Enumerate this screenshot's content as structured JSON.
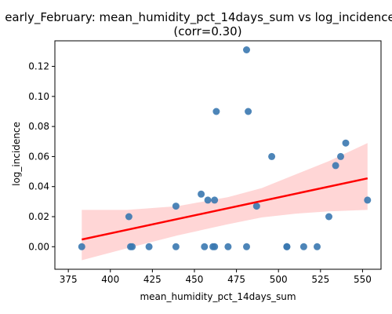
{
  "chart_data": {
    "type": "scatter",
    "title_line1": "early_February: mean_humidity_pct_14days_sum vs log_incidence",
    "title_line2": "(corr=0.30)",
    "xlabel": "mean_humidity_pct_14days_sum",
    "ylabel": "log_incidence",
    "xlim": [
      367,
      561
    ],
    "ylim": [
      -0.015,
      0.137
    ],
    "xticks": [
      375,
      400,
      425,
      450,
      475,
      500,
      525,
      550
    ],
    "xtick_labels": [
      "375",
      "400",
      "425",
      "450",
      "475",
      "500",
      "525",
      "550"
    ],
    "yticks": [
      0.0,
      0.02,
      0.04,
      0.06,
      0.08,
      0.1,
      0.12
    ],
    "ytick_labels": [
      "0.00",
      "0.02",
      "0.04",
      "0.06",
      "0.08",
      "0.10",
      "0.12"
    ],
    "grid": false,
    "points": [
      {
        "x": 383,
        "y": 0.0
      },
      {
        "x": 411,
        "y": 0.02
      },
      {
        "x": 412,
        "y": 0.0
      },
      {
        "x": 413,
        "y": 0.0
      },
      {
        "x": 423,
        "y": 0.0
      },
      {
        "x": 439,
        "y": 0.027
      },
      {
        "x": 439,
        "y": 0.0
      },
      {
        "x": 454,
        "y": 0.035
      },
      {
        "x": 456,
        "y": 0.0
      },
      {
        "x": 458,
        "y": 0.031
      },
      {
        "x": 461,
        "y": 0.0
      },
      {
        "x": 462,
        "y": 0.031
      },
      {
        "x": 462,
        "y": 0.0
      },
      {
        "x": 463,
        "y": 0.09
      },
      {
        "x": 470,
        "y": 0.0
      },
      {
        "x": 481,
        "y": 0.0
      },
      {
        "x": 481,
        "y": 0.131
      },
      {
        "x": 482,
        "y": 0.09
      },
      {
        "x": 487,
        "y": 0.027
      },
      {
        "x": 496,
        "y": 0.06
      },
      {
        "x": 505,
        "y": 0.0
      },
      {
        "x": 505,
        "y": 0.0
      },
      {
        "x": 515,
        "y": 0.0
      },
      {
        "x": 523,
        "y": 0.0
      },
      {
        "x": 530,
        "y": 0.02
      },
      {
        "x": 534,
        "y": 0.054
      },
      {
        "x": 537,
        "y": 0.06
      },
      {
        "x": 540,
        "y": 0.069
      },
      {
        "x": 553,
        "y": 0.031
      }
    ],
    "regression_line": {
      "x": [
        383,
        553
      ],
      "y": [
        0.0048,
        0.0455
      ]
    },
    "confidence_band": {
      "x": [
        383,
        410,
        440,
        470,
        490,
        510,
        530,
        553
      ],
      "upper": [
        0.0245,
        0.0245,
        0.027,
        0.033,
        0.039,
        0.048,
        0.057,
        0.069
      ],
      "lower": [
        -0.009,
        -0.001,
        0.0075,
        0.015,
        0.0195,
        0.022,
        0.0235,
        0.0245
      ]
    },
    "colors": {
      "points": "#3a78b0",
      "regression": "#ff0000",
      "band": "#ffb4b4"
    }
  }
}
